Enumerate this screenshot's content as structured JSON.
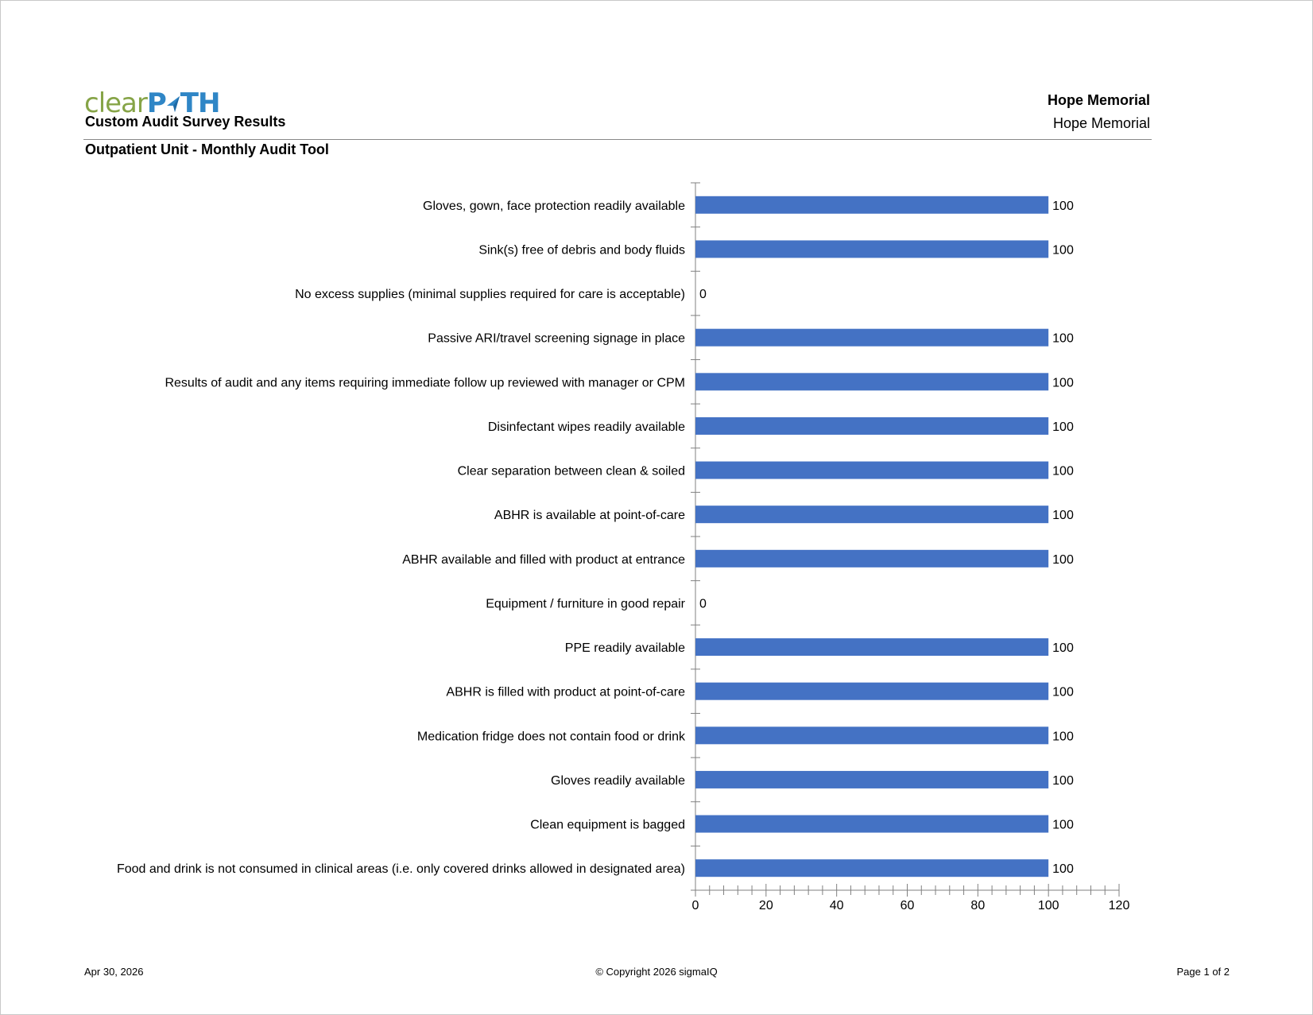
{
  "header": {
    "logo_part1": "clear",
    "logo_part2": "P",
    "logo_part3": "TH",
    "report_title": "Custom Audit Survey Results",
    "facility_bold": "Hope Memorial",
    "facility_normal": "Hope Memorial",
    "subtitle": "Outpatient Unit - Monthly Audit Tool"
  },
  "colors": {
    "bar": "#4472c4",
    "logo_green": "#86a447",
    "logo_blue": "#2f86c6",
    "axis": "#808080"
  },
  "chart_data": {
    "type": "bar",
    "orientation": "horizontal",
    "categories": [
      "Gloves, gown, face protection readily available",
      "Sink(s) free of debris and body fluids",
      "No excess supplies (minimal supplies required for care is acceptable)",
      "Passive ARI/travel screening signage in place",
      "Results of audit and any items requiring immediate follow up reviewed with manager or CPM",
      "Disinfectant wipes readily available",
      "Clear separation between clean & soiled",
      "ABHR is available at point-of-care",
      "ABHR available and filled with product at entrance",
      "Equipment / furniture in good repair",
      "PPE readily available",
      "ABHR is filled with product at point-of-care",
      "Medication fridge does not contain food or drink",
      "Gloves readily available",
      "Clean equipment is bagged",
      "Food and drink is not consumed in clinical areas (i.e. only covered drinks allowed in designated area)"
    ],
    "values": [
      100,
      100,
      0,
      100,
      100,
      100,
      100,
      100,
      100,
      0,
      100,
      100,
      100,
      100,
      100,
      100
    ],
    "data_labels": [
      "100",
      "100",
      "0",
      "100",
      "100",
      "100",
      "100",
      "100",
      "100",
      "0",
      "100",
      "100",
      "100",
      "100",
      "100",
      "100"
    ],
    "xlim": [
      0,
      120
    ],
    "x_ticks": [
      0,
      20,
      40,
      60,
      80,
      100,
      120
    ],
    "x_tick_labels": [
      "0",
      "20",
      "40",
      "60",
      "80",
      "100",
      "120"
    ],
    "x_minor_step": 4,
    "grid": false,
    "legend": "none"
  },
  "footer": {
    "date": "Apr 30, 2026",
    "copyright": "© Copyright 2026 sigmaIQ",
    "page": "Page 1 of 2"
  }
}
